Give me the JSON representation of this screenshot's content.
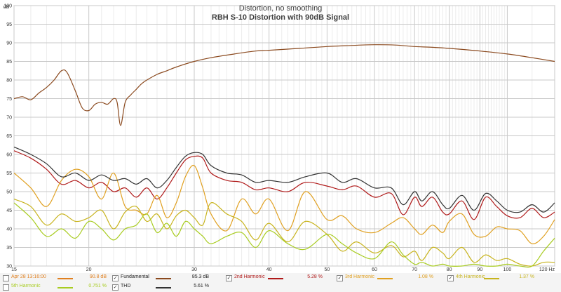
{
  "chart_data": {
    "type": "line",
    "title": "Distortion, no smoothing",
    "subtitle": "RBH S-10 Distortion with 90dB Signal",
    "ylabel": "dB",
    "xunit": "Hz",
    "xscale": "log",
    "xlim": [
      15,
      120
    ],
    "ylim": [
      30,
      100
    ],
    "grid": true,
    "legend_placement": "bottom",
    "xticks": [
      15,
      20,
      30,
      40,
      50,
      60,
      70,
      80,
      90,
      100,
      120
    ],
    "xtick_labels": [
      "15",
      "20",
      "30",
      "40",
      "50",
      "60",
      "70",
      "80",
      "90",
      "100",
      "120 Hz"
    ],
    "yticks": [
      30,
      35,
      40,
      45,
      50,
      55,
      60,
      65,
      70,
      75,
      80,
      85,
      90,
      95,
      100
    ],
    "series": [
      {
        "name": "Fundamental",
        "color": "#8b4a1f",
        "x": [
          15,
          15.5,
          16,
          16.5,
          17,
          17.5,
          18,
          18.4,
          19,
          19.5,
          20,
          20.5,
          21,
          21.5,
          22,
          22.3,
          22.6,
          23,
          23.5,
          24,
          24.5,
          25,
          26,
          27,
          28,
          30,
          32,
          35,
          38,
          40,
          45,
          50,
          55,
          60,
          65,
          70,
          75,
          80,
          90,
          100,
          110,
          120
        ],
        "values": [
          75,
          75.5,
          74.7,
          76.5,
          78,
          80,
          82.5,
          82,
          77,
          72.5,
          71.8,
          73.5,
          74,
          73.5,
          75,
          74,
          67.8,
          74,
          76,
          77.5,
          79,
          80,
          81.5,
          82.5,
          83.5,
          85,
          86,
          87,
          87.8,
          88,
          88.5,
          89,
          89.3,
          89.5,
          89.4,
          89,
          88.8,
          88.5,
          87.8,
          87,
          86,
          85
        ]
      },
      {
        "name": "2nd Harmonic",
        "color": "#b01a1a",
        "x": [
          15,
          16,
          17,
          18,
          19,
          20,
          21,
          22,
          23,
          24,
          25,
          26,
          27,
          28,
          29,
          30,
          31,
          32,
          34,
          36,
          38,
          40,
          43,
          46,
          50,
          53,
          56,
          60,
          64,
          67,
          70,
          72,
          75,
          78,
          80,
          84,
          88,
          92,
          96,
          100,
          105,
          110,
          115,
          120
        ],
        "values": [
          61,
          59,
          56,
          52,
          53,
          51,
          52.5,
          50,
          51,
          48.5,
          51,
          48,
          51,
          55,
          58.5,
          59.5,
          59,
          55,
          53,
          52.5,
          50.5,
          51,
          50,
          52.5,
          51.5,
          50.5,
          51.5,
          48.5,
          49.5,
          43.8,
          48.5,
          46,
          48.5,
          44.5,
          44,
          47.5,
          42.5,
          48.5,
          46,
          43.5,
          43,
          45.5,
          43,
          44.5
        ]
      },
      {
        "name": "3rd Harmonic",
        "color": "#e0a020",
        "x": [
          15,
          16,
          17,
          18,
          19,
          20,
          21,
          22,
          23,
          24,
          25,
          26,
          27,
          28,
          29,
          30,
          31,
          32,
          34,
          36,
          38,
          40,
          43,
          46,
          50,
          53,
          56,
          60,
          64,
          67,
          70,
          72,
          75,
          78,
          80,
          84,
          88,
          92,
          96,
          100,
          105,
          110,
          115,
          120
        ],
        "values": [
          55,
          51,
          46,
          53,
          56,
          54,
          48,
          55,
          46,
          45,
          44,
          49,
          43,
          47,
          54,
          57,
          51,
          44,
          39.5,
          48,
          44,
          48,
          39.5,
          50,
          42.5,
          43.5,
          40,
          39,
          41.5,
          43,
          40,
          38.5,
          41,
          39,
          42,
          44,
          38.5,
          38,
          40.5,
          40,
          39.5,
          36,
          38,
          42.5
        ]
      },
      {
        "name": "4th Harmonic",
        "color": "#c8b41e",
        "x": [
          15,
          16,
          17,
          18,
          19,
          20,
          21,
          22,
          23,
          24,
          25,
          26,
          27,
          28,
          29,
          30,
          31,
          32,
          34,
          36,
          38,
          40,
          43,
          46,
          50,
          53,
          56,
          60,
          64,
          67,
          70,
          72,
          75,
          78,
          80,
          84,
          88,
          92,
          96,
          100,
          105,
          110,
          115,
          120
        ],
        "values": [
          48,
          46,
          41,
          44,
          42,
          43,
          45,
          40,
          44.5,
          46,
          42,
          44,
          40,
          43.5,
          45,
          43,
          41,
          47,
          44,
          42,
          37,
          41.5,
          36.5,
          42,
          38.5,
          34,
          36.5,
          33.5,
          35.5,
          32.5,
          34,
          31.5,
          35,
          33.5,
          32,
          35,
          31,
          33,
          31.5,
          32,
          30.5,
          30,
          31,
          31
        ]
      },
      {
        "name": "5th Harmonic",
        "color": "#a8cc20",
        "x": [
          15,
          16,
          17,
          18,
          19,
          20,
          21,
          22,
          23,
          24,
          25,
          26,
          27,
          28,
          29,
          30,
          31,
          32,
          34,
          36,
          38,
          40,
          43,
          46,
          50,
          53,
          56,
          60,
          64,
          67,
          70,
          72,
          75,
          78,
          80,
          84,
          88,
          92,
          96,
          100,
          105,
          110,
          115,
          120
        ],
        "values": [
          47,
          43,
          38,
          40,
          37.5,
          42,
          40,
          37,
          40,
          41,
          44,
          39,
          41.5,
          38,
          42,
          40,
          38,
          36,
          38,
          39,
          35,
          39.5,
          36,
          34.5,
          38.5,
          36,
          33.5,
          32,
          36.5,
          33,
          30.5,
          31,
          30,
          30.5,
          30,
          30,
          30.5,
          30,
          30,
          30.5,
          30,
          30,
          34,
          37.5
        ]
      },
      {
        "name": "THD",
        "color": "#333333",
        "x": [
          15,
          16,
          17,
          18,
          19,
          20,
          21,
          22,
          23,
          24,
          25,
          26,
          27,
          28,
          29,
          30,
          31,
          32,
          34,
          36,
          38,
          40,
          43,
          46,
          50,
          53,
          56,
          60,
          64,
          67,
          70,
          72,
          75,
          78,
          80,
          84,
          88,
          92,
          96,
          100,
          105,
          110,
          115,
          120
        ],
        "values": [
          62,
          60,
          57.5,
          54,
          55,
          53,
          54.5,
          53,
          53.5,
          52,
          53.5,
          51,
          53,
          56.5,
          59.5,
          60.5,
          60,
          57,
          55,
          54.5,
          52.5,
          53,
          52.5,
          54,
          55,
          52.5,
          53.5,
          51,
          51,
          46.5,
          50,
          47.5,
          50,
          46.5,
          45.5,
          49,
          45,
          49.5,
          47.5,
          45,
          44.5,
          46.5,
          44.5,
          47
        ]
      }
    ]
  },
  "legend": [
    {
      "key": "timestamp",
      "checked": false,
      "label": "Apr 28 13:16:00",
      "value": "90.8 dB",
      "color": "#e08020"
    },
    {
      "key": "fundamental",
      "checked": true,
      "label": "Fundamental",
      "value": "85.3 dB",
      "color": "#8b4a1f"
    },
    {
      "key": "h2",
      "checked": true,
      "label": "2nd Harmonic",
      "value": "5.28 %",
      "color": "#b01a1a"
    },
    {
      "key": "h3",
      "checked": true,
      "label": "3rd Harmonic",
      "value": "1.08 %",
      "color": "#e0a020"
    },
    {
      "key": "h4",
      "checked": true,
      "label": "4th Harmonic",
      "value": "1.37 %",
      "color": "#c8b41e"
    },
    {
      "key": "h5",
      "checked": false,
      "label": "5th Harmonic",
      "value": "0.751 %",
      "color": "#a8cc20"
    },
    {
      "key": "thd",
      "checked": true,
      "label": "THD",
      "value": "5.61 %",
      "color": "#333333"
    }
  ]
}
